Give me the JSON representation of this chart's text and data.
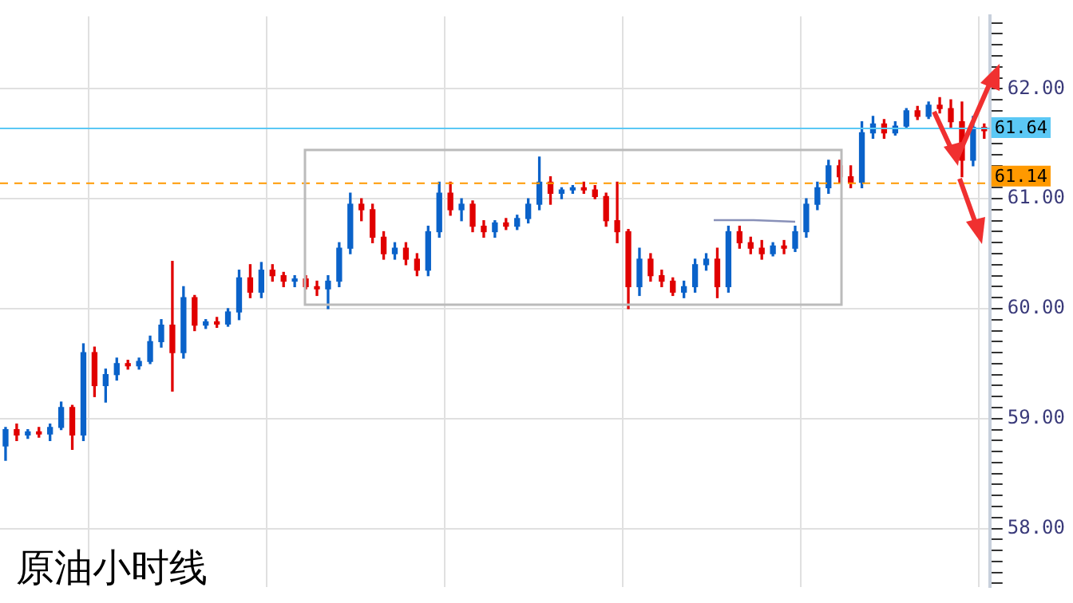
{
  "chart_data": {
    "type": "candlestick",
    "title": "原油小时线",
    "categories": [
      null,
      null,
      null,
      null,
      null,
      null,
      null,
      null,
      null,
      null,
      null,
      null,
      null,
      null,
      null,
      null,
      null,
      null,
      null,
      null,
      null,
      null,
      null,
      null,
      null,
      null,
      null,
      null,
      null,
      null,
      null,
      null,
      null,
      null,
      null,
      null,
      null,
      null,
      null,
      null,
      null,
      null,
      null,
      null,
      null,
      null,
      null,
      null,
      null,
      null,
      null,
      null,
      null,
      null,
      null,
      null,
      null,
      null,
      null,
      null,
      null,
      null,
      null,
      null,
      null,
      null,
      null,
      null,
      null,
      null,
      null,
      null,
      null,
      null,
      null,
      null,
      null,
      null,
      null,
      null,
      null,
      null,
      null,
      null,
      null,
      null,
      null,
      null,
      null
    ],
    "ohlc": [
      [
        58.75,
        58.92,
        58.62,
        58.9
      ],
      [
        58.9,
        58.95,
        58.8,
        58.85
      ],
      [
        58.85,
        58.9,
        58.82,
        58.88
      ],
      [
        58.88,
        58.92,
        58.83,
        58.86
      ],
      [
        58.86,
        58.95,
        58.8,
        58.92
      ],
      [
        58.92,
        59.15,
        58.9,
        59.1
      ],
      [
        59.1,
        59.12,
        58.72,
        58.85
      ],
      [
        58.85,
        59.68,
        58.8,
        59.6
      ],
      [
        59.6,
        59.65,
        59.2,
        59.3
      ],
      [
        59.3,
        59.45,
        59.15,
        59.4
      ],
      [
        59.4,
        59.55,
        59.35,
        59.5
      ],
      [
        59.5,
        59.53,
        59.45,
        59.48
      ],
      [
        59.48,
        59.55,
        59.45,
        59.52
      ],
      [
        59.52,
        59.75,
        59.5,
        59.7
      ],
      [
        59.7,
        59.9,
        59.65,
        59.85
      ],
      [
        59.85,
        60.43,
        59.25,
        59.6
      ],
      [
        59.6,
        60.2,
        59.55,
        60.1
      ],
      [
        60.1,
        60.12,
        59.8,
        59.85
      ],
      [
        59.85,
        59.9,
        59.82,
        59.88
      ],
      [
        59.88,
        59.92,
        59.83,
        59.86
      ],
      [
        59.86,
        60.0,
        59.84,
        59.97
      ],
      [
        59.97,
        60.35,
        59.9,
        60.28
      ],
      [
        60.28,
        60.4,
        60.1,
        60.15
      ],
      [
        60.15,
        60.42,
        60.1,
        60.35
      ],
      [
        60.35,
        60.4,
        60.25,
        60.3
      ],
      [
        60.3,
        60.33,
        60.2,
        60.25
      ],
      [
        60.25,
        60.3,
        60.2,
        60.27
      ],
      [
        60.27,
        60.3,
        60.18,
        60.2
      ],
      [
        60.2,
        60.25,
        60.12,
        60.18
      ],
      [
        60.18,
        60.3,
        60.0,
        60.25
      ],
      [
        60.25,
        60.6,
        60.2,
        60.55
      ],
      [
        60.55,
        61.05,
        60.5,
        60.95
      ],
      [
        60.95,
        61.0,
        60.8,
        60.9
      ],
      [
        60.9,
        60.95,
        60.6,
        60.65
      ],
      [
        60.65,
        60.7,
        60.45,
        60.5
      ],
      [
        60.5,
        60.6,
        60.45,
        60.55
      ],
      [
        60.55,
        60.6,
        60.4,
        60.45
      ],
      [
        60.45,
        60.5,
        60.3,
        60.35
      ],
      [
        60.35,
        60.75,
        60.3,
        60.7
      ],
      [
        60.7,
        61.15,
        60.65,
        61.05
      ],
      [
        61.05,
        61.15,
        60.85,
        60.9
      ],
      [
        60.9,
        61.0,
        60.8,
        60.95
      ],
      [
        60.95,
        60.98,
        60.7,
        60.75
      ],
      [
        60.75,
        60.8,
        60.65,
        60.7
      ],
      [
        60.7,
        60.8,
        60.65,
        60.78
      ],
      [
        60.78,
        60.82,
        60.72,
        60.75
      ],
      [
        60.75,
        60.85,
        60.72,
        60.82
      ],
      [
        60.82,
        61.0,
        60.78,
        60.95
      ],
      [
        60.95,
        61.38,
        60.9,
        61.15
      ],
      [
        61.15,
        61.2,
        60.95,
        61.05
      ],
      [
        61.05,
        61.1,
        61.0,
        61.08
      ],
      [
        61.08,
        61.12,
        61.05,
        61.1
      ],
      [
        61.1,
        61.15,
        61.05,
        61.08
      ],
      [
        61.08,
        61.12,
        61.0,
        61.02
      ],
      [
        61.02,
        61.05,
        60.75,
        60.8
      ],
      [
        60.8,
        61.15,
        60.6,
        60.7
      ],
      [
        60.7,
        60.72,
        60.0,
        60.2
      ],
      [
        60.2,
        60.55,
        60.12,
        60.45
      ],
      [
        60.45,
        60.5,
        60.25,
        60.3
      ],
      [
        60.3,
        60.35,
        60.2,
        60.25
      ],
      [
        60.25,
        60.28,
        60.12,
        60.15
      ],
      [
        60.15,
        60.25,
        60.1,
        60.2
      ],
      [
        60.2,
        60.45,
        60.15,
        60.4
      ],
      [
        60.4,
        60.5,
        60.35,
        60.45
      ],
      [
        60.45,
        60.55,
        60.1,
        60.2
      ],
      [
        60.2,
        60.75,
        60.15,
        60.7
      ],
      [
        60.7,
        60.75,
        60.55,
        60.6
      ],
      [
        60.6,
        60.65,
        60.5,
        60.55
      ],
      [
        60.55,
        60.62,
        60.45,
        60.5
      ],
      [
        60.5,
        60.6,
        60.48,
        60.57
      ],
      [
        60.57,
        60.62,
        60.5,
        60.55
      ],
      [
        60.55,
        60.75,
        60.52,
        60.7
      ],
      [
        60.7,
        61.0,
        60.65,
        60.95
      ],
      [
        60.95,
        61.15,
        60.9,
        61.1
      ],
      [
        61.1,
        61.35,
        61.05,
        61.3
      ],
      [
        61.3,
        61.35,
        61.15,
        61.2
      ],
      [
        61.2,
        61.3,
        61.1,
        61.15
      ],
      [
        61.15,
        61.7,
        61.1,
        61.6
      ],
      [
        61.6,
        61.75,
        61.55,
        61.68
      ],
      [
        61.68,
        61.72,
        61.55,
        61.6
      ],
      [
        61.6,
        61.7,
        61.58,
        61.66
      ],
      [
        61.66,
        61.82,
        61.64,
        61.8
      ],
      [
        61.8,
        61.84,
        61.72,
        61.75
      ],
      [
        61.75,
        61.88,
        61.73,
        61.85
      ],
      [
        61.85,
        61.92,
        61.78,
        61.82
      ],
      [
        61.82,
        61.9,
        61.65,
        61.7
      ],
      [
        61.7,
        61.88,
        61.2,
        61.35
      ],
      [
        61.35,
        61.75,
        61.3,
        61.65
      ],
      [
        61.65,
        61.68,
        61.55,
        61.62
      ]
    ],
    "colors": [
      "#0a62c9",
      "#e00000",
      "#0a62c9",
      "#e00000",
      "#0a62c9",
      "#0a62c9",
      "#e00000",
      "#0a62c9",
      "#e00000",
      "#0a62c9",
      "#0a62c9",
      "#e00000",
      "#0a62c9",
      "#0a62c9",
      "#0a62c9",
      "#e00000",
      "#0a62c9",
      "#e00000",
      "#0a62c9",
      "#e00000",
      "#0a62c9",
      "#0a62c9",
      "#e00000",
      "#0a62c9",
      "#e00000",
      "#e00000",
      "#0a62c9",
      "#e00000",
      "#e00000",
      "#0a62c9",
      "#0a62c9",
      "#0a62c9",
      "#e00000",
      "#e00000",
      "#e00000",
      "#0a62c9",
      "#e00000",
      "#e00000",
      "#0a62c9",
      "#0a62c9",
      "#e00000",
      "#0a62c9",
      "#e00000",
      "#e00000",
      "#0a62c9",
      "#e00000",
      "#0a62c9",
      "#0a62c9",
      "#0a62c9",
      "#e00000",
      "#0a62c9",
      "#0a62c9",
      "#e00000",
      "#e00000",
      "#e00000",
      "#e00000",
      "#e00000",
      "#0a62c9",
      "#e00000",
      "#e00000",
      "#e00000",
      "#0a62c9",
      "#0a62c9",
      "#0a62c9",
      "#e00000",
      "#0a62c9",
      "#e00000",
      "#e00000",
      "#e00000",
      "#0a62c9",
      "#e00000",
      "#0a62c9",
      "#0a62c9",
      "#0a62c9",
      "#0a62c9",
      "#e00000",
      "#e00000",
      "#0a62c9",
      "#0a62c9",
      "#e00000",
      "#0a62c9",
      "#0a62c9",
      "#e00000",
      "#0a62c9",
      "#e00000",
      "#e00000",
      "#e00000",
      "#0a62c9",
      "#e00000"
    ],
    "ylim": [
      57.47,
      62.66
    ],
    "yticks": [
      {
        "value": 57.5,
        "label": null
      },
      {
        "value": 57.6,
        "label": null
      },
      {
        "value": 57.7,
        "label": null
      },
      {
        "value": 57.8,
        "label": null
      },
      {
        "value": 57.9,
        "label": null
      },
      {
        "value": 58,
        "label": "58.00"
      },
      {
        "value": 58.1,
        "label": null
      },
      {
        "value": 58.2,
        "label": null
      },
      {
        "value": 58.3,
        "label": null
      },
      {
        "value": 58.4,
        "label": null
      },
      {
        "value": 58.5,
        "label": null
      },
      {
        "value": 58.6,
        "label": null
      },
      {
        "value": 58.7,
        "label": null
      },
      {
        "value": 58.8,
        "label": null
      },
      {
        "value": 58.9,
        "label": null
      },
      {
        "value": 59,
        "label": "59.00"
      },
      {
        "value": 59.1,
        "label": null
      },
      {
        "value": 59.2,
        "label": null
      },
      {
        "value": 59.3,
        "label": null
      },
      {
        "value": 59.4,
        "label": null
      },
      {
        "value": 59.5,
        "label": null
      },
      {
        "value": 59.6,
        "label": null
      },
      {
        "value": 59.7,
        "label": null
      },
      {
        "value": 59.8,
        "label": null
      },
      {
        "value": 59.9,
        "label": null
      },
      {
        "value": 60,
        "label": "60.00"
      },
      {
        "value": 60.1,
        "label": null
      },
      {
        "value": 60.2,
        "label": null
      },
      {
        "value": 60.3,
        "label": null
      },
      {
        "value": 60.4,
        "label": null
      },
      {
        "value": 60.5,
        "label": null
      },
      {
        "value": 60.6,
        "label": null
      },
      {
        "value": 60.7,
        "label": null
      },
      {
        "value": 60.8,
        "label": null
      },
      {
        "value": 60.9,
        "label": null
      },
      {
        "value": 61,
        "label": "61.00"
      },
      {
        "value": 61.1,
        "label": null
      },
      {
        "value": 61.2,
        "label": null
      },
      {
        "value": 61.3,
        "label": null
      },
      {
        "value": 61.4,
        "label": null
      },
      {
        "value": 61.5,
        "label": null
      },
      {
        "value": 61.6,
        "label": null
      },
      {
        "value": 61.7,
        "label": null
      },
      {
        "value": 61.8,
        "label": null
      },
      {
        "value": 61.9,
        "label": null
      },
      {
        "value": 62,
        "label": "62.00"
      },
      {
        "value": 62.1,
        "label": null
      },
      {
        "value": 62.2,
        "label": null
      },
      {
        "value": 62.3,
        "label": null
      },
      {
        "value": 62.4,
        "label": null
      },
      {
        "value": 62.5,
        "label": null
      },
      {
        "value": 62.6,
        "label": null
      }
    ],
    "ref_lines": [
      {
        "axis": "y",
        "value": 61.64,
        "label": "61.64",
        "color": "#5bc8f5"
      },
      {
        "axis": "y",
        "value": 61.14,
        "label": "61.14",
        "color": "#ff9900",
        "line_style": "dashed"
      }
    ],
    "grid": true,
    "legend": false
  }
}
